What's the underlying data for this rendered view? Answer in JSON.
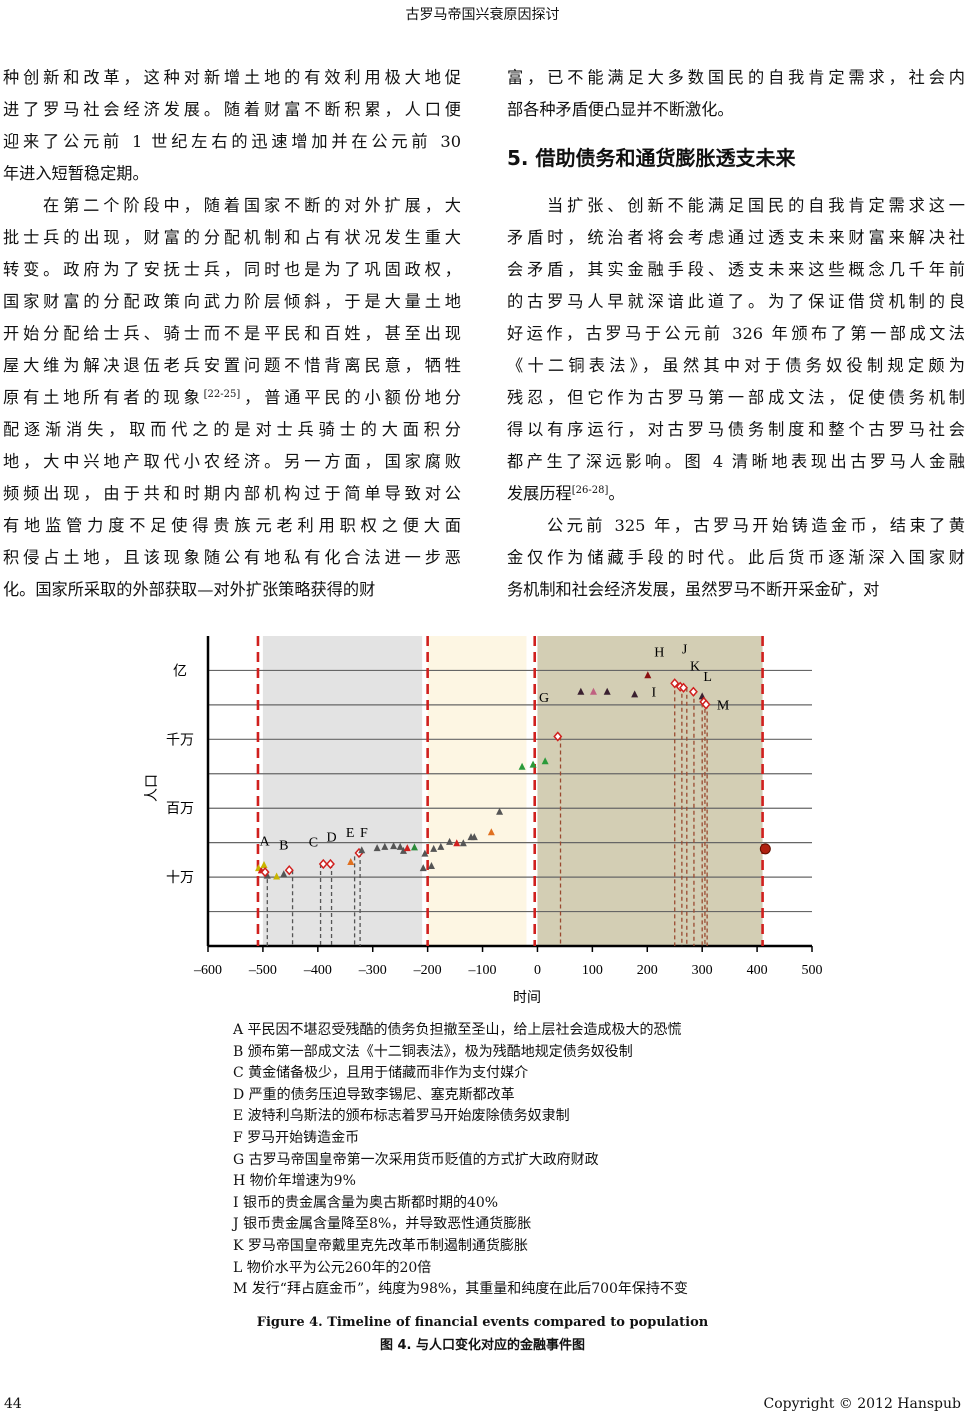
{
  "running_header": "古罗马帝国兴衰原因探讨",
  "left_column": [
    {
      "lines": [
        {
          "t": "种创新和改革，这种对新增土地的有效利用极大地促"
        },
        {
          "t": "进了罗马社会经济发展。随着财富不断积累，人口便"
        },
        {
          "t": "迎来了公元前 1 世纪左右的迅速增加并在公元前 30"
        },
        {
          "t": "年进入短暂稳定期。"
        }
      ]
    },
    {
      "indent": true,
      "lines": [
        {
          "t": "在第二个阶段中，随着国家不断的对外扩展，大"
        },
        {
          "t": "批士兵的出现，财富的分配机制和占有状况发生重大"
        },
        {
          "t": "转变。政府为了安抚士兵，同时也是为了巩固政权，"
        },
        {
          "t": "国家财富的分配政策向武力阶层倾斜，于是大量土地"
        },
        {
          "t": "开始分配给士兵、骑士而不是平民和百姓，甚至出现"
        },
        {
          "t": "屋大维为解决退伍老兵安置问题不惜背离民意，牺牲"
        },
        {
          "t": "原有土地所有者的现象",
          "sup": "[22-25]",
          "post": "，普通平民的小额份地分"
        },
        {
          "t": "配逐渐消失，取而代之的是对士兵骑士的大面积分"
        },
        {
          "t": "地，大中兴地产取代小农经济。另一方面，国家腐败"
        },
        {
          "t": "频频出现，由于共和时期内部机构过于简单导致对公"
        },
        {
          "t": "有地监管力度不足使得贵族元老利用职权之便大面"
        },
        {
          "t": "积侵占土地，且该现象随公有地私有化合法进一步恶"
        },
        {
          "t": "化。国家所采取的外部获取—对外扩张策略获得的财"
        }
      ]
    }
  ],
  "right_column": [
    {
      "lines": [
        {
          "t": "富，已不能满足大多数国民的自我肯定需求，社会内"
        },
        {
          "t": "部各种矛盾便凸显并不断激化。"
        }
      ]
    },
    {
      "heading": "5. 借助债务和通货膨胀透支未来"
    },
    {
      "indent": true,
      "lines": [
        {
          "t": "当扩张、创新不能满足国民的自我肯定需求这一"
        },
        {
          "t": "矛盾时，统治者将会考虑通过透支未来财富来解决社"
        },
        {
          "t": "会矛盾，其实金融手段、透支未来这些概念几千年前"
        },
        {
          "t": "的古罗马人早就深谙此道了。为了保证借贷机制的良"
        },
        {
          "t": "好运作，古罗马于公元前 326 年颁布了第一部成文法"
        },
        {
          "t": "《十二铜表法》，虽然其中对于债务奴役制规定颇为"
        },
        {
          "t": "残忍，但它作为古罗马第一部成文法，促使债务机制"
        },
        {
          "t": "得以有序运行，对古罗马债务制度和整个古罗马社会"
        },
        {
          "t": "都产生了深远影响。图 4 清晰地表现出古罗马人金融"
        },
        {
          "t": "发展历程",
          "sup": "[26-28]",
          "post": "。"
        }
      ]
    },
    {
      "indent": true,
      "lines": [
        {
          "t": "公元前 325 年，古罗马开始铸造金币，结束了黄"
        },
        {
          "t": "金仅作为储藏手段的时代。此后货币逐渐深入国家财"
        },
        {
          "t": "务机制和社会经济发展，虽然罗马不断开采金矿，对"
        }
      ]
    }
  ],
  "chart_data": {
    "type": "scatter",
    "xlabel": "时间",
    "ylabel": "人口",
    "xlim": [
      -600,
      500
    ],
    "xticks": [
      -600,
      -500,
      -400,
      -300,
      -200,
      -100,
      0,
      100,
      200,
      300,
      400,
      500
    ],
    "xtick_labels": [
      "–600",
      "–500",
      "–400",
      "–300",
      "–200",
      "–100",
      "0",
      "100",
      "200",
      "300",
      "400",
      "500"
    ],
    "y_scale": "log",
    "ylim": [
      10000,
      316000000
    ],
    "yticks": [
      {
        "value": 100000,
        "label": "十万"
      },
      {
        "value": 1000000,
        "label": "百万"
      },
      {
        "value": 10000000,
        "label": "千万"
      },
      {
        "value": 100000000,
        "label": "亿"
      }
    ],
    "grid": "horizontal, every half decade",
    "shaded_periods": [
      {
        "from": -500,
        "to": -210,
        "color": "#e3e3e3"
      },
      {
        "from": -200,
        "to": -20,
        "color": "#fdf6e3"
      },
      {
        "from": 0,
        "to": 410,
        "color": "#d3ceb4"
      }
    ],
    "boundary_lines": [
      -509,
      -200,
      -5,
      410
    ],
    "boundary_color": "#d0201e",
    "points": [
      {
        "x": -508,
        "y": 135000,
        "m": "tri",
        "c": "#c8b400"
      },
      {
        "x": -503,
        "y": 125000,
        "m": "tri",
        "c": "#d0201e"
      },
      {
        "x": -498,
        "y": 150000,
        "m": "tri",
        "c": "#c8b400"
      },
      {
        "x": -492,
        "y": 105000,
        "m": "tri",
        "c": "#555555"
      },
      {
        "x": -475,
        "y": 102000,
        "m": "tri",
        "c": "#c8b400"
      },
      {
        "x": -462,
        "y": 110000,
        "m": "tri",
        "c": "#555555"
      },
      {
        "x": -496,
        "y": 118000,
        "m": "dia",
        "c": "#d0201e"
      },
      {
        "x": -452,
        "y": 126000,
        "m": "dia",
        "c": "#d0201e"
      },
      {
        "x": -390,
        "y": 155000,
        "m": "dia",
        "c": "#d0201e"
      },
      {
        "x": -377,
        "y": 155000,
        "m": "dia",
        "c": "#d0201e"
      },
      {
        "x": -340,
        "y": 166000,
        "m": "tri",
        "c": "#e07020"
      },
      {
        "x": -325,
        "y": 224000,
        "m": "dia",
        "c": "#d0201e"
      },
      {
        "x": -320,
        "y": 245000,
        "m": "tri",
        "c": "#555555"
      },
      {
        "x": -292,
        "y": 263000,
        "m": "tri",
        "c": "#555555"
      },
      {
        "x": -278,
        "y": 275000,
        "m": "tri",
        "c": "#555555"
      },
      {
        "x": -262,
        "y": 282000,
        "m": "tri",
        "c": "#555555"
      },
      {
        "x": -250,
        "y": 275000,
        "m": "tri",
        "c": "#555555"
      },
      {
        "x": -244,
        "y": 240000,
        "m": "tri",
        "c": "#555555"
      },
      {
        "x": -237,
        "y": 263000,
        "m": "tri",
        "c": "#d0201e"
      },
      {
        "x": -224,
        "y": 270000,
        "m": "tri",
        "c": "#2a8a3a"
      },
      {
        "x": -205,
        "y": 219000,
        "m": "tri",
        "c": "#555555"
      },
      {
        "x": -208,
        "y": 135000,
        "m": "tri",
        "c": "#555555"
      },
      {
        "x": -193,
        "y": 145000,
        "m": "tri",
        "c": "#555555"
      },
      {
        "x": -189,
        "y": 257000,
        "m": "tri",
        "c": "#555555"
      },
      {
        "x": -176,
        "y": 275000,
        "m": "tri",
        "c": "#555555"
      },
      {
        "x": -160,
        "y": 324000,
        "m": "tri",
        "c": "#555555"
      },
      {
        "x": -147,
        "y": 310000,
        "m": "tri",
        "c": "#d0201e"
      },
      {
        "x": -135,
        "y": 310000,
        "m": "tri",
        "c": "#555555"
      },
      {
        "x": -121,
        "y": 380000,
        "m": "tri",
        "c": "#555555"
      },
      {
        "x": -115,
        "y": 380000,
        "m": "tri",
        "c": "#555555"
      },
      {
        "x": -84,
        "y": 447000,
        "m": "tri",
        "c": "#e07020"
      },
      {
        "x": -69,
        "y": 890000,
        "m": "tri",
        "c": "#555555"
      },
      {
        "x": -28,
        "y": 4000000,
        "m": "tri",
        "c": "#2a9a3a"
      },
      {
        "x": -8,
        "y": 4300000,
        "m": "tri",
        "c": "#2a9a3a"
      },
      {
        "x": 14,
        "y": 4800000,
        "m": "tri",
        "c": "#2a9a3a"
      },
      {
        "x": 37,
        "y": 11000000,
        "m": "dia",
        "c": "#d0201e"
      },
      {
        "x": 79,
        "y": 49000000,
        "m": "tri",
        "c": "#3a2030"
      },
      {
        "x": 102,
        "y": 49000000,
        "m": "tri",
        "c": "#c06080"
      },
      {
        "x": 127,
        "y": 49000000,
        "m": "tri",
        "c": "#3a2030"
      },
      {
        "x": 177,
        "y": 45000000,
        "m": "tri",
        "c": "#3a2030"
      },
      {
        "x": 201,
        "y": 85000000,
        "m": "tri",
        "c": "#8a1010"
      },
      {
        "x": 250,
        "y": 65000000,
        "m": "dia",
        "c": "#d0201e"
      },
      {
        "x": 260,
        "y": 58000000,
        "m": "dia",
        "c": "#d0201e"
      },
      {
        "x": 266,
        "y": 56000000,
        "m": "dia",
        "c": "#d0201e"
      },
      {
        "x": 284,
        "y": 49000000,
        "m": "dia",
        "c": "#d0201e"
      },
      {
        "x": 300,
        "y": 42000000,
        "m": "tri",
        "c": "#3a2030"
      },
      {
        "x": 303,
        "y": 35000000,
        "m": "dia",
        "c": "#d0201e"
      },
      {
        "x": 307,
        "y": 32000000,
        "m": "dia",
        "c": "#d0201e"
      },
      {
        "x": 415,
        "y": 257000,
        "m": "circ",
        "c": "#b02010"
      }
    ],
    "event_drops": [
      {
        "x": -492,
        "y": 118000,
        "c": "#555555"
      },
      {
        "x": -446,
        "y": 126000,
        "c": "#555555"
      },
      {
        "x": -395,
        "y": 155000,
        "c": "#555555"
      },
      {
        "x": -375,
        "y": 155000,
        "c": "#555555"
      },
      {
        "x": -333,
        "y": 200000,
        "c": "#555555"
      },
      {
        "x": -323,
        "y": 224000,
        "c": "#555555"
      },
      {
        "x": 42,
        "y": 11000000,
        "c": "#9a4a30"
      },
      {
        "x": 250,
        "y": 65000000,
        "c": "#9a4a30"
      },
      {
        "x": 263,
        "y": 58000000,
        "c": "#9a4a30"
      },
      {
        "x": 272,
        "y": 56000000,
        "c": "#9a4a30"
      },
      {
        "x": 285,
        "y": 49000000,
        "c": "#9a4a30"
      },
      {
        "x": 300,
        "y": 42000000,
        "c": "#9a4a30"
      },
      {
        "x": 305,
        "y": 35000000,
        "c": "#9a4a30"
      },
      {
        "x": 309,
        "y": 32000000,
        "c": "#9a4a30"
      }
    ],
    "event_labels": [
      {
        "text": "A",
        "x": -497,
        "y": 290000
      },
      {
        "text": "B",
        "x": -462,
        "y": 250000
      },
      {
        "text": "C",
        "x": -408,
        "y": 280000
      },
      {
        "text": "D",
        "x": -375,
        "y": 330000
      },
      {
        "text": "E",
        "x": -341,
        "y": 380000
      },
      {
        "text": "F",
        "x": -316,
        "y": 380000
      },
      {
        "text": "G",
        "x": 12,
        "y": 35000000
      },
      {
        "text": "H",
        "x": 222,
        "y": 160000000
      },
      {
        "text": "I",
        "x": 212,
        "y": 42000000
      },
      {
        "text": "J",
        "x": 268,
        "y": 175000000
      },
      {
        "text": "K",
        "x": 287,
        "y": 100000000
      },
      {
        "text": "L",
        "x": 310,
        "y": 70000000
      },
      {
        "text": "M",
        "x": 338,
        "y": 27000000
      }
    ]
  },
  "legend": [
    "A 平民因不堪忍受残酷的债务负担撤至圣山，给上层社会造成极大的恐慌",
    "B 颁布第一部成文法《十二铜表法》，极为残酷地规定债务奴役制",
    "C 黄金储备极少，且用于储藏而非作为支付媒介",
    "D 严重的债务压迫导致李锡尼、塞克斯都改革",
    "E 波特利乌斯法的颁布标志着罗马开始废除债务奴隶制",
    "F 罗马开始铸造金币",
    "G 古罗马帝国皇帝第一次采用货币贬值的方式扩大政府财政",
    "H 物价年增速为9%",
    "I 银币的贵金属含量为奥古斯都时期的40%",
    "J 银币贵金属含量降至8%，并导致恶性通货膨胀",
    "K 罗马帝国皇帝戴里克先改革币制遏制通货膨胀",
    "L 物价水平为公元260年的20倍",
    "M 发行“拜占庭金币”，纯度为98%，其重量和纯度在此后700年保持不变"
  ],
  "caption_en": "Figure 4. Timeline of financial events compared to population",
  "caption_zh": "图 4.  与人口变化对应的金融事件图",
  "footer": {
    "page_number": "44",
    "copyright": "Copyright © 2012 Hanspub"
  }
}
